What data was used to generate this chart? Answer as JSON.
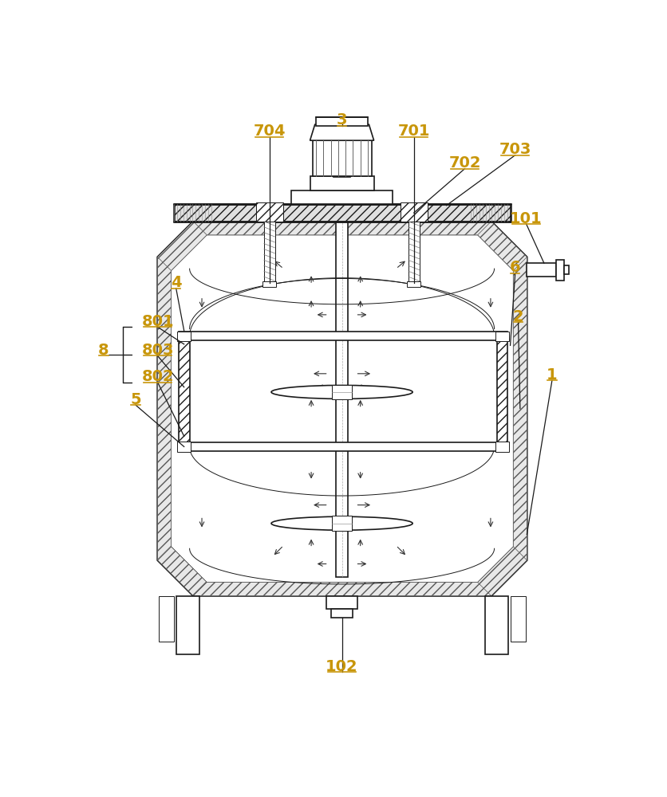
{
  "bg_color": "#ffffff",
  "line_color": "#1a1a1a",
  "label_color": "#c8960a",
  "figsize": [
    8.37,
    10.0
  ],
  "dpi": 100
}
